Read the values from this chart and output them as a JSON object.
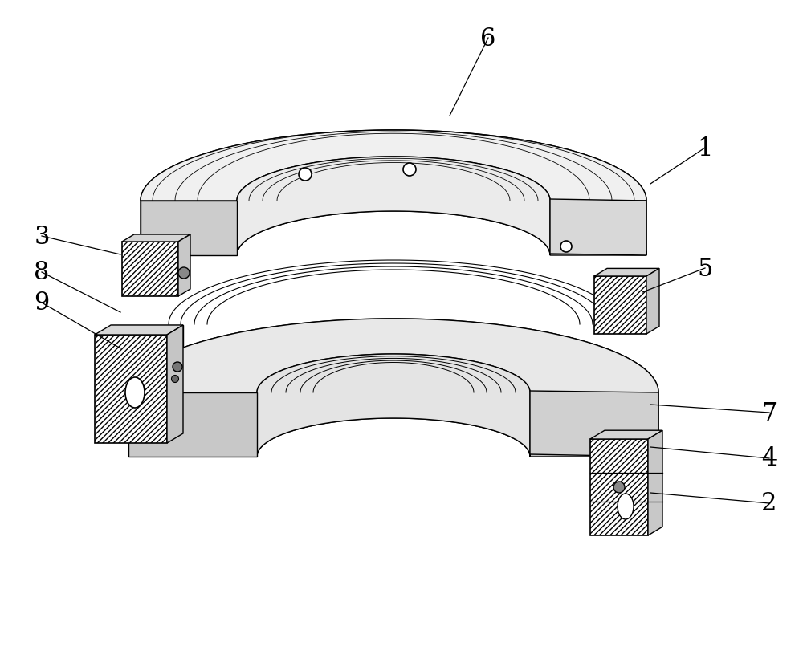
{
  "background_color": "#ffffff",
  "line_color": "#000000",
  "label_fontsize": 22,
  "figsize": [
    10.0,
    8.37
  ],
  "dpi": 100,
  "labels_data": [
    [
      "1",
      878,
      185,
      810,
      230
    ],
    [
      "6",
      608,
      48,
      560,
      145
    ],
    [
      "3",
      52,
      295,
      150,
      318
    ],
    [
      "5",
      878,
      335,
      800,
      365
    ],
    [
      "8",
      52,
      340,
      150,
      390
    ],
    [
      "9",
      52,
      378,
      150,
      435
    ],
    [
      "2",
      958,
      628,
      810,
      615
    ],
    [
      "4",
      958,
      572,
      810,
      558
    ],
    [
      "7",
      958,
      515,
      810,
      505
    ]
  ]
}
